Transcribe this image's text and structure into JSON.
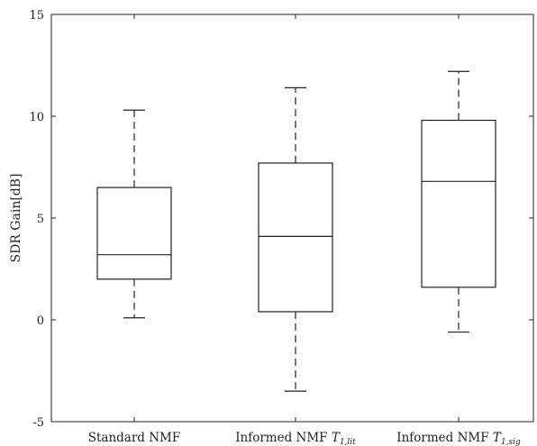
{
  "chart_data": {
    "type": "box",
    "ylabel": "SDR Gain[dB]",
    "ylim": [
      -5,
      15
    ],
    "yticks": [
      -5,
      0,
      5,
      10,
      15
    ],
    "grid": false,
    "categories": [
      {
        "name": "Standard NMF",
        "sub": ""
      },
      {
        "name": "Informed NMF T",
        "sub": "1,lit"
      },
      {
        "name": "Informed NMF T",
        "sub": "1,sig"
      }
    ],
    "boxes": [
      {
        "whisker_low": 0.1,
        "q1": 2.0,
        "median": 3.2,
        "q3": 6.5,
        "whisker_high": 10.3
      },
      {
        "whisker_low": -3.5,
        "q1": 0.4,
        "median": 4.1,
        "q3": 7.7,
        "whisker_high": 11.4
      },
      {
        "whisker_low": -0.6,
        "q1": 1.6,
        "median": 6.8,
        "q3": 9.8,
        "whisker_high": 12.2
      }
    ]
  }
}
